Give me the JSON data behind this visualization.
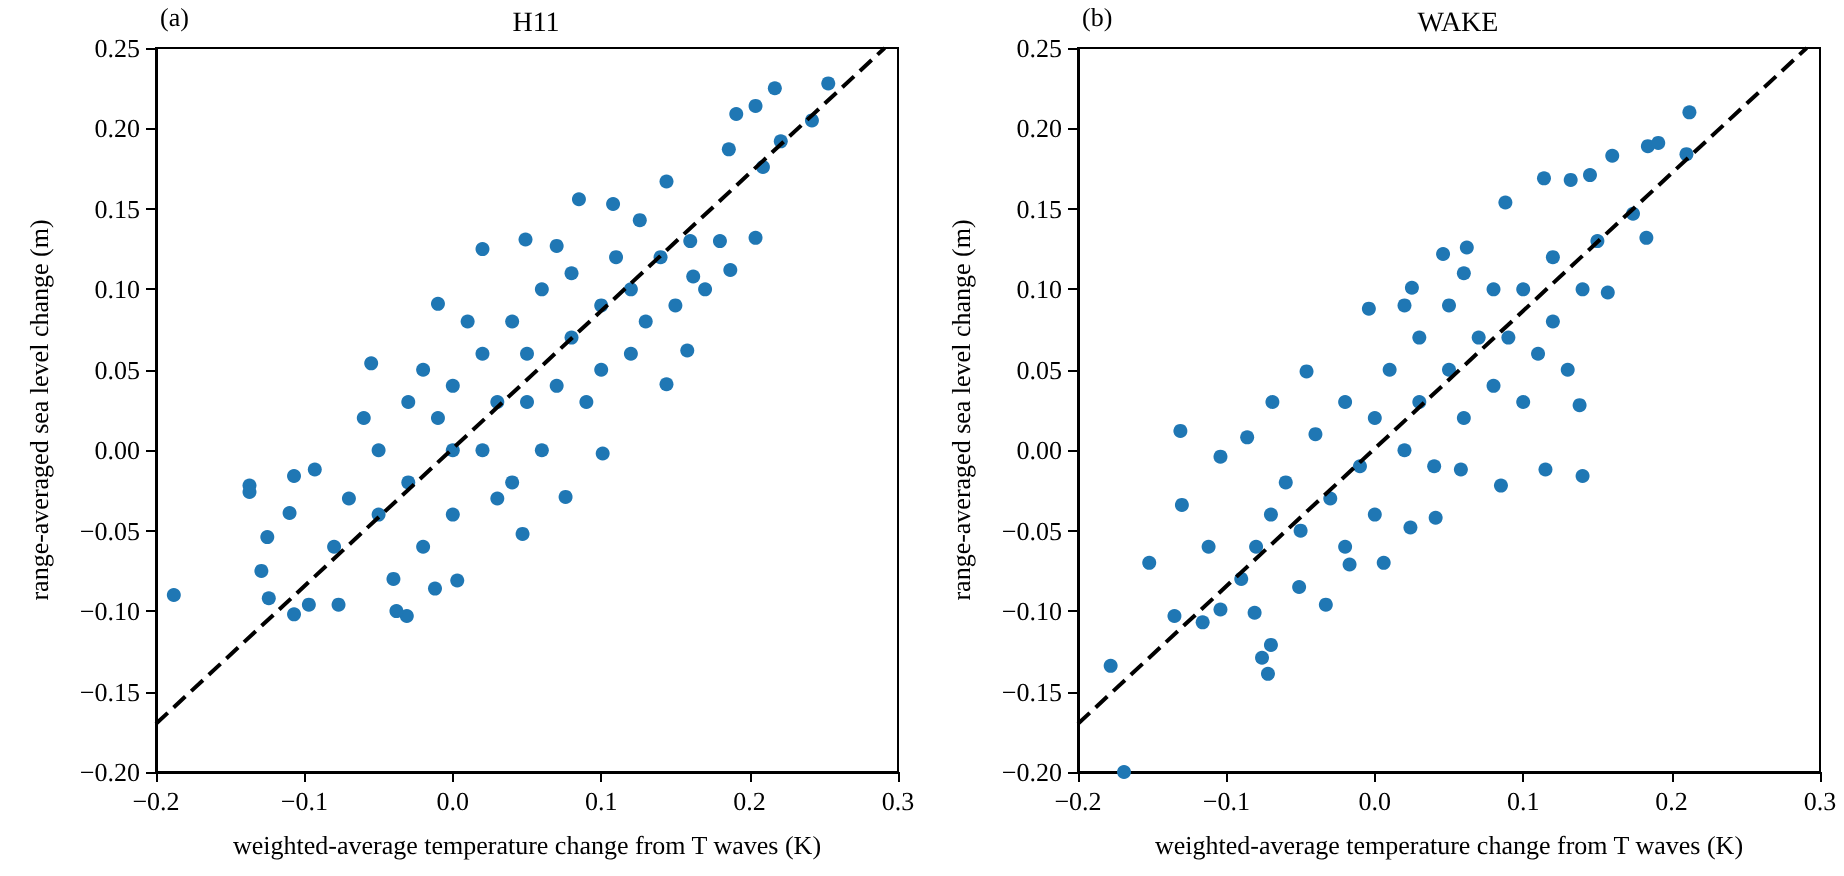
{
  "chart_data": [
    {
      "type": "scatter",
      "title": "H11",
      "annotations": [
        "(a)"
      ],
      "xlabel": "weighted-average temperature change from T waves (K)",
      "ylabel": "range-averaged sea level change (m)",
      "marker": "circle",
      "grid": false,
      "xlim": [
        -0.2,
        0.3
      ],
      "xticks": [
        {
          "value": -0.2,
          "label": "−0.2"
        },
        {
          "value": -0.1,
          "label": "−0.1"
        },
        {
          "value": 0,
          "label": "0.0"
        },
        {
          "value": 0.1,
          "label": "0.1"
        },
        {
          "value": 0.2,
          "label": "0.2"
        },
        {
          "value": 0.3,
          "label": "0.3"
        }
      ],
      "ylim": [
        -0.2,
        0.25
      ],
      "yticks": [
        {
          "value": -0.2,
          "label": "−0.20"
        },
        {
          "value": -0.15,
          "label": "−0.15"
        },
        {
          "value": -0.1,
          "label": "−0.10"
        },
        {
          "value": -0.05,
          "label": "−0.05"
        },
        {
          "value": 0,
          "label": "0.00"
        },
        {
          "value": 0.05,
          "label": "0.05"
        },
        {
          "value": 0.1,
          "label": "0.10"
        },
        {
          "value": 0.15,
          "label": "0.15"
        },
        {
          "value": 0.2,
          "label": "0.20"
        },
        {
          "value": 0.25,
          "label": "0.25"
        }
      ],
      "series": [
        {
          "color": "#1f77b4",
          "x": [
            -0.188,
            0.253,
            0.217,
            0.191,
            0.204,
            0.242,
            0.221,
            0.186,
            0.209,
            0.085,
            0.108,
            0.144,
            0.204,
            0.187,
            0.158,
            0.144,
            0.101,
            0.076,
            0.047,
            0.003,
            -0.031,
            -0.038,
            -0.012,
            -0.077,
            -0.097,
            -0.107,
            -0.124,
            -0.129,
            -0.125,
            -0.137,
            -0.137,
            -0.11,
            -0.107,
            -0.093,
            -0.055,
            -0.01,
            0.02,
            0.07,
            0.049,
            0.126,
            0.162,
            -0.05,
            -0.05,
            -0.03,
            -0.02,
            0,
            0,
            0,
            0.02,
            0.02,
            0.03,
            0.04,
            0.05,
            0.06,
            0.06,
            0.08,
            0.08,
            0.1,
            0.1,
            0.12,
            0.12,
            0.14,
            0.15,
            -0.07,
            -0.08,
            -0.06,
            -0.04,
            -0.02,
            0.01,
            0.04,
            0.07,
            0.09,
            0.11,
            0.13,
            0.16,
            -0.01,
            0.03,
            0.05,
            -0.03,
            0.17,
            0.18
          ],
          "values": [
            -0.09,
            0.228,
            0.225,
            0.209,
            0.214,
            0.205,
            0.192,
            0.187,
            0.176,
            0.156,
            0.153,
            0.167,
            0.132,
            0.112,
            0.062,
            0.041,
            -0.002,
            -0.029,
            -0.052,
            -0.081,
            -0.103,
            -0.1,
            -0.086,
            -0.096,
            -0.096,
            -0.102,
            -0.092,
            -0.075,
            -0.054,
            -0.022,
            -0.026,
            -0.039,
            -0.016,
            -0.012,
            0.054,
            0.091,
            0.125,
            0.127,
            0.131,
            0.143,
            0.108,
            0.0,
            -0.04,
            0.03,
            -0.06,
            0,
            0.04,
            -0.04,
            0.06,
            0.0,
            -0.03,
            0.08,
            0.03,
            0.1,
            0.0,
            0.07,
            0.11,
            0.09,
            0.05,
            0.1,
            0.06,
            0.12,
            0.09,
            -0.03,
            -0.06,
            0.02,
            -0.08,
            0.05,
            0.08,
            -0.02,
            0.04,
            0.03,
            0.12,
            0.08,
            0.13,
            0.02,
            0.03,
            0.06,
            -0.02,
            0.1,
            0.13
          ]
        },
        {
          "type": "line",
          "color": "#000000",
          "line_style": "dashed",
          "marker": "none",
          "x": [
            -0.2,
            0.291
          ],
          "values": [
            -0.17,
            0.25
          ]
        }
      ]
    },
    {
      "type": "scatter",
      "title": "WAKE",
      "annotations": [
        "(b)"
      ],
      "xlabel": "weighted-average temperature change from T waves (K)",
      "ylabel": "range-averaged sea level change (m)",
      "marker": "circle",
      "grid": false,
      "xlim": [
        -0.2,
        0.3
      ],
      "xticks": [
        {
          "value": -0.2,
          "label": "−0.2"
        },
        {
          "value": -0.1,
          "label": "−0.1"
        },
        {
          "value": 0,
          "label": "0.0"
        },
        {
          "value": 0.1,
          "label": "0.1"
        },
        {
          "value": 0.2,
          "label": "0.2"
        },
        {
          "value": 0.3,
          "label": "0.3"
        }
      ],
      "ylim": [
        -0.2,
        0.25
      ],
      "yticks": [
        {
          "value": -0.2,
          "label": "−0.20"
        },
        {
          "value": -0.15,
          "label": "−0.15"
        },
        {
          "value": -0.1,
          "label": "−0.10"
        },
        {
          "value": -0.05,
          "label": "−0.05"
        },
        {
          "value": 0,
          "label": "0.00"
        },
        {
          "value": 0.05,
          "label": "0.05"
        },
        {
          "value": 0.1,
          "label": "0.10"
        },
        {
          "value": 0.15,
          "label": "0.15"
        },
        {
          "value": 0.2,
          "label": "0.20"
        },
        {
          "value": 0.25,
          "label": "0.25"
        }
      ],
      "series": [
        {
          "color": "#1f77b4",
          "x": [
            -0.169,
            -0.178,
            -0.152,
            -0.135,
            -0.116,
            -0.104,
            -0.131,
            -0.13,
            -0.104,
            -0.112,
            -0.072,
            -0.076,
            -0.07,
            -0.081,
            -0.033,
            -0.051,
            -0.004,
            0.025,
            0.046,
            0.062,
            0.088,
            0.114,
            0.145,
            0.16,
            0.184,
            0.191,
            0.21,
            0.212,
            0.183,
            0.157,
            0.138,
            0.14,
            0.115,
            0.085,
            0.058,
            0.041,
            0.024,
            0.006,
            -0.017,
            -0.069,
            -0.046,
            -0.086,
            0.174,
            0.132,
            -0.06,
            -0.05,
            -0.04,
            -0.03,
            -0.02,
            -0.01,
            0,
            0,
            0.01,
            0.02,
            0.03,
            0.03,
            0.04,
            0.05,
            0.05,
            0.06,
            0.07,
            0.08,
            0.08,
            0.09,
            0.1,
            0.1,
            0.11,
            0.12,
            0.12,
            0.13,
            0.14,
            -0.08,
            -0.07,
            -0.09,
            0.15,
            0.02,
            -0.02,
            0.06
          ],
          "values": [
            -0.2,
            -0.134,
            -0.07,
            -0.103,
            -0.107,
            -0.099,
            0.012,
            -0.034,
            -0.004,
            -0.06,
            -0.139,
            -0.129,
            -0.121,
            -0.101,
            -0.096,
            -0.085,
            0.088,
            0.101,
            0.122,
            0.126,
            0.154,
            0.169,
            0.171,
            0.183,
            0.189,
            0.191,
            0.184,
            0.21,
            0.132,
            0.098,
            0.028,
            -0.016,
            -0.012,
            -0.022,
            -0.012,
            -0.042,
            -0.048,
            -0.07,
            -0.071,
            0.03,
            0.049,
            0.008,
            0.147,
            0.168,
            -0.02,
            -0.05,
            0.01,
            -0.03,
            0.03,
            -0.01,
            0.02,
            -0.04,
            0.05,
            0,
            0.03,
            0.07,
            -0.01,
            0.05,
            0.09,
            0.02,
            0.07,
            0.1,
            0.04,
            0.07,
            0.1,
            0.03,
            0.06,
            0.12,
            0.08,
            0.05,
            0.1,
            -0.06,
            -0.04,
            -0.08,
            0.13,
            0.09,
            -0.06,
            0.11
          ]
        },
        {
          "type": "line",
          "color": "#000000",
          "line_style": "dashed",
          "marker": "none",
          "x": [
            -0.2,
            0.291
          ],
          "values": [
            -0.17,
            0.25
          ]
        }
      ]
    }
  ]
}
